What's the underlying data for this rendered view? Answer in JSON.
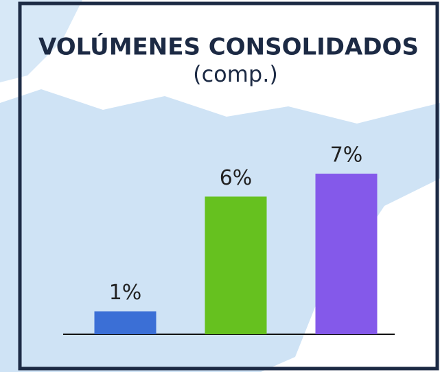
{
  "chart_data": {
    "type": "bar",
    "title": "VOLÚMENES CONSOLIDADOS",
    "subtitle": "(comp.)",
    "categories": [
      null,
      null,
      null
    ],
    "values": [
      1,
      6,
      7
    ],
    "value_labels": [
      "1%",
      "6%",
      "7%"
    ],
    "colors": [
      "#3b6fd6",
      "#66c11f",
      "#8459ea"
    ],
    "ylim": [
      0,
      7
    ]
  }
}
